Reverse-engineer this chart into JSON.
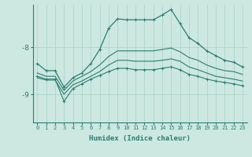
{
  "xlabel": "Humidex (Indice chaleur)",
  "bg_color": "#cce8e0",
  "line_color": "#2a7d72",
  "grid_color": "#aed4cc",
  "xlim": [
    -0.5,
    23.5
  ],
  "ylim": [
    -9.6,
    -7.1
  ],
  "yticks": [
    -9,
    -8
  ],
  "xticks": [
    0,
    1,
    2,
    3,
    4,
    5,
    6,
    7,
    8,
    9,
    10,
    11,
    12,
    13,
    14,
    15,
    16,
    17,
    18,
    19,
    20,
    21,
    22,
    23
  ],
  "line_top": [
    -8.35,
    -8.5,
    -8.5,
    -8.85,
    -8.65,
    -8.55,
    -8.35,
    -8.05,
    -7.6,
    -7.4,
    -7.42,
    -7.42,
    -7.42,
    -7.42,
    -7.32,
    -7.2,
    -7.5,
    -7.8,
    -7.92,
    -8.08,
    -8.18,
    -8.28,
    -8.32,
    -8.42
  ],
  "line_upper_band": [
    -8.55,
    -8.62,
    -8.62,
    -8.92,
    -8.72,
    -8.62,
    -8.52,
    -8.38,
    -8.2,
    -8.08,
    -8.08,
    -8.08,
    -8.08,
    -8.08,
    -8.05,
    -8.02,
    -8.1,
    -8.22,
    -8.28,
    -8.38,
    -8.45,
    -8.5,
    -8.52,
    -8.58
  ],
  "line_lower_band": [
    -8.65,
    -8.7,
    -8.7,
    -9.0,
    -8.8,
    -8.72,
    -8.62,
    -8.52,
    -8.38,
    -8.28,
    -8.28,
    -8.3,
    -8.3,
    -8.3,
    -8.28,
    -8.25,
    -8.3,
    -8.42,
    -8.48,
    -8.55,
    -8.62,
    -8.65,
    -8.68,
    -8.72
  ],
  "line_bottom": [
    -8.62,
    -8.68,
    -8.68,
    -9.15,
    -8.88,
    -8.78,
    -8.68,
    -8.6,
    -8.52,
    -8.45,
    -8.45,
    -8.48,
    -8.48,
    -8.48,
    -8.45,
    -8.42,
    -8.48,
    -8.58,
    -8.62,
    -8.68,
    -8.72,
    -8.75,
    -8.78,
    -8.82
  ]
}
